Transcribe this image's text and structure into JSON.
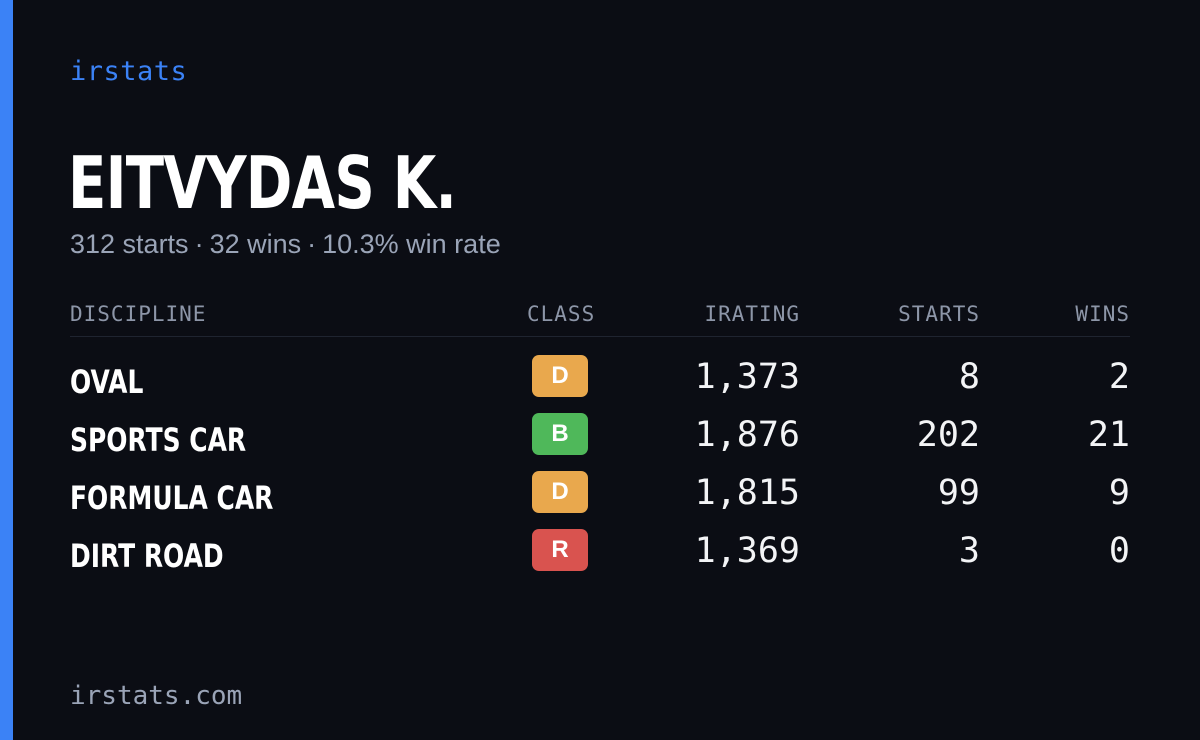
{
  "brand": "irstats",
  "driver": {
    "name": "EITVYDAS K.",
    "starts_text": "312 starts",
    "wins_text": "32 wins",
    "win_rate_text": "10.3% win rate",
    "separator": "·"
  },
  "table": {
    "headers": {
      "discipline": "DISCIPLINE",
      "class": "CLASS",
      "irating": "IRATING",
      "starts": "STARTS",
      "wins": "WINS"
    },
    "rows": [
      {
        "discipline": "OVAL",
        "class": "D",
        "class_color": "#e9a84d",
        "irating": "1,373",
        "starts": "8",
        "wins": "2"
      },
      {
        "discipline": "SPORTS CAR",
        "class": "B",
        "class_color": "#4fb85a",
        "irating": "1,876",
        "starts": "202",
        "wins": "21"
      },
      {
        "discipline": "FORMULA CAR",
        "class": "D",
        "class_color": "#e9a84d",
        "irating": "1,815",
        "starts": "99",
        "wins": "9"
      },
      {
        "discipline": "DIRT ROAD",
        "class": "R",
        "class_color": "#d9534f",
        "irating": "1,369",
        "starts": "3",
        "wins": "0"
      }
    ]
  },
  "footer": "irstats.com",
  "colors": {
    "background": "#0b0d14",
    "accent": "#3b82f6",
    "muted_text": "#9aa4b7"
  }
}
